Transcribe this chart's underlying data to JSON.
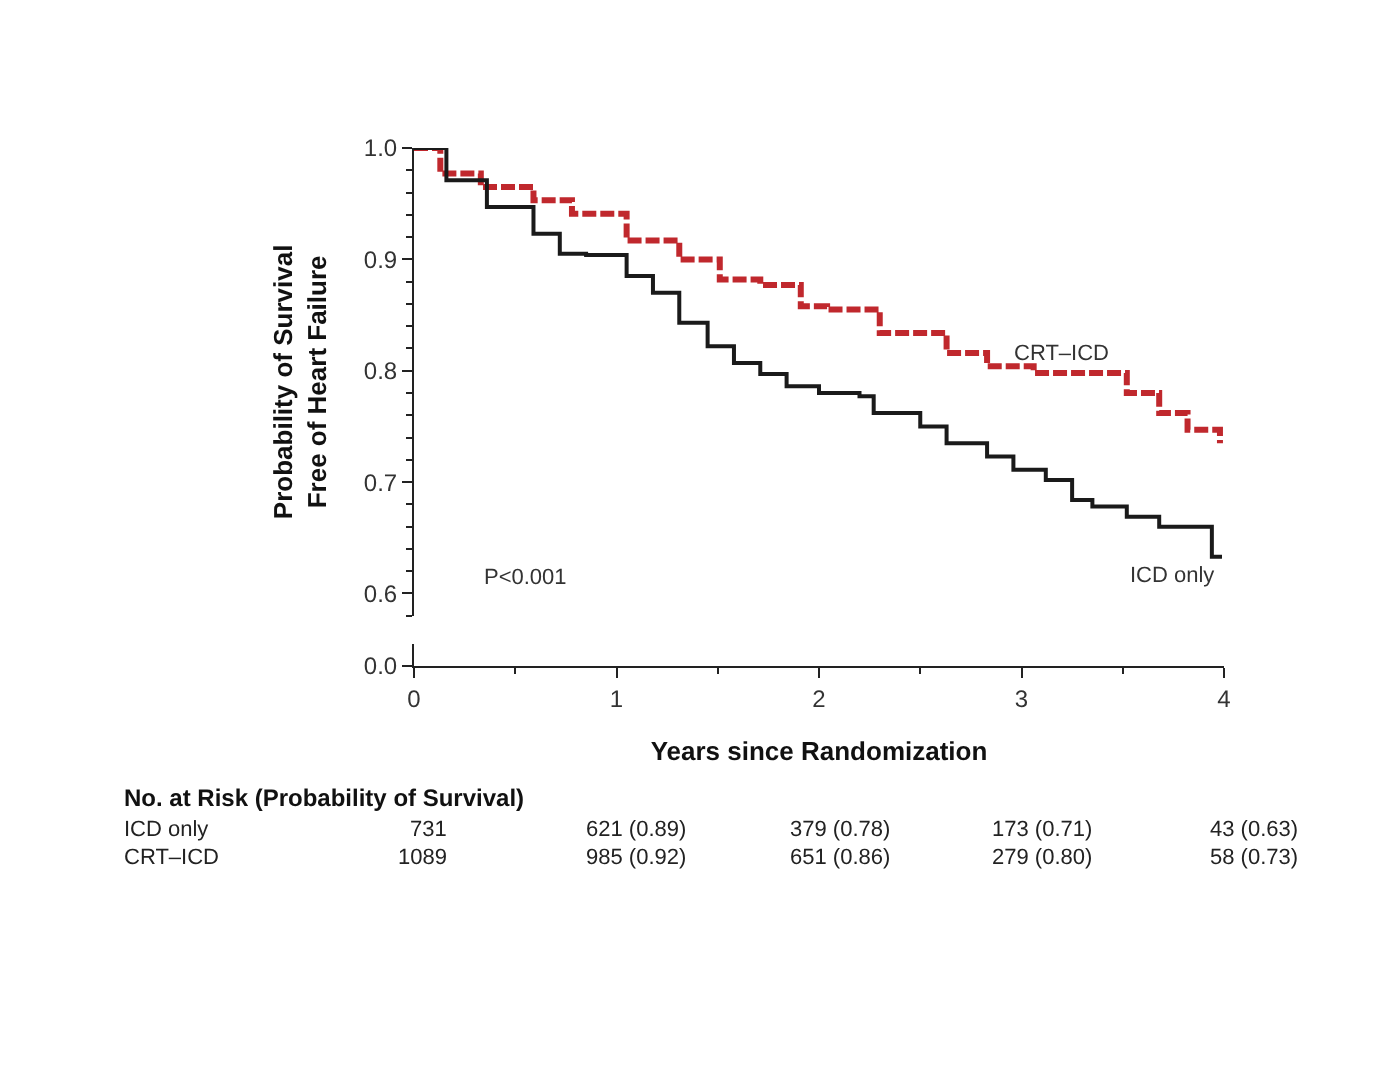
{
  "chart_data": {
    "type": "step",
    "xlabel": "Years since Randomization",
    "ylabel": "Probability of Survival\nFree of Heart Failure",
    "xlim": [
      0,
      4
    ],
    "xticks": [
      0,
      1,
      2,
      3,
      4
    ],
    "ylim": [
      0.58,
      1.0
    ],
    "yticks": [
      {
        "value": 0.6,
        "label": "0.6"
      },
      {
        "value": 0.7,
        "label": "0.7"
      },
      {
        "value": 0.8,
        "label": "0.8"
      },
      {
        "value": 0.9,
        "label": "0.9"
      },
      {
        "value": 1.0,
        "label": "1.0"
      }
    ],
    "series": [
      {
        "name": "CRT–ICD",
        "color": "#c0282d",
        "line_style": "dashed",
        "x": [
          0,
          0.13,
          0.33,
          0.59,
          0.78,
          1.05,
          1.31,
          1.51,
          1.71,
          1.91,
          2.04,
          2.3,
          2.63,
          2.83,
          3.06,
          3.49,
          3.52,
          3.68,
          3.82,
          3.98
        ],
        "values": [
          1.0,
          0.977,
          0.965,
          0.953,
          0.941,
          0.917,
          0.9,
          0.882,
          0.877,
          0.858,
          0.855,
          0.834,
          0.816,
          0.804,
          0.798,
          0.798,
          0.78,
          0.762,
          0.747,
          0.735
        ]
      },
      {
        "name": "ICD only",
        "color": "#1a1a1a",
        "line_style": "solid",
        "x": [
          0,
          0.16,
          0.36,
          0.59,
          0.72,
          0.85,
          1.05,
          1.18,
          1.31,
          1.45,
          1.58,
          1.71,
          1.84,
          2.0,
          2.2,
          2.27,
          2.5,
          2.63,
          2.83,
          2.96,
          3.12,
          3.25,
          3.35,
          3.52,
          3.68,
          3.94,
          3.99
        ],
        "values": [
          1.0,
          0.971,
          0.947,
          0.923,
          0.905,
          0.904,
          0.885,
          0.87,
          0.843,
          0.822,
          0.807,
          0.797,
          0.786,
          0.78,
          0.777,
          0.762,
          0.75,
          0.735,
          0.723,
          0.711,
          0.702,
          0.684,
          0.678,
          0.669,
          0.66,
          0.633,
          0.633
        ]
      }
    ],
    "annotations": [
      "P<0.001",
      "No. at Risk (Probability of Survival)",
      "ICD only",
      "731",
      "621 (0.89)",
      "379 (0.78)",
      "173 (0.71)",
      "43 (0.63)",
      "CRT–ICD",
      "1089",
      "985 (0.92)",
      "651 (0.86)",
      "279 (0.80)",
      "58 (0.73)",
      "0.0"
    ]
  }
}
